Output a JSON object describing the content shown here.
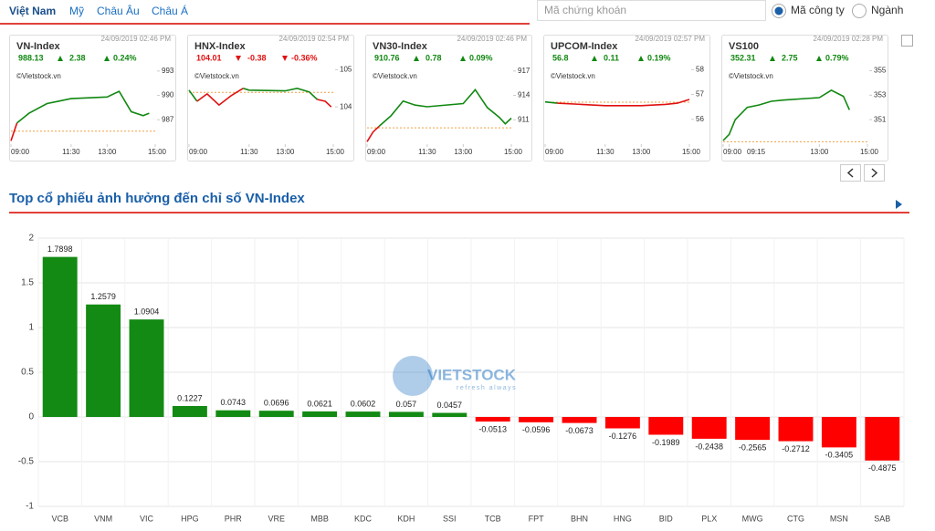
{
  "nav": {
    "tabs": [
      "Việt Nam",
      "Mỹ",
      "Châu Âu",
      "Châu Á"
    ],
    "active_tab": 0,
    "search_placeholder": "Mã chứng khoán",
    "options": [
      "Mã công ty",
      "Ngành"
    ],
    "selected_option": 0
  },
  "chart_data": [
    {
      "type": "bar",
      "title": "Top cổ phiếu ảnh hưởng đến chỉ số VN-Index",
      "categories": [
        "VCB",
        "VNM",
        "VIC",
        "HPG",
        "PHR",
        "VRE",
        "MBB",
        "KDC",
        "KDH",
        "SSI",
        "TCB",
        "FPT",
        "BHN",
        "HNG",
        "BID",
        "PLX",
        "MWG",
        "CTG",
        "MSN",
        "SAB"
      ],
      "values": [
        1.7898,
        1.2579,
        1.0904,
        0.1227,
        0.0743,
        0.0696,
        0.0621,
        0.0602,
        0.057,
        0.0457,
        -0.0513,
        -0.0596,
        -0.0673,
        -0.1276,
        -0.1989,
        -0.2438,
        -0.2565,
        -0.2712,
        -0.3405,
        -0.4875
      ],
      "ylim": [
        -1,
        2
      ],
      "yticks": [
        -1,
        -0.5,
        0,
        0.5,
        1,
        1.5,
        2
      ],
      "grid": true,
      "positive_color": "#138a13",
      "negative_color": "#ff0000",
      "watermark": {
        "text": "VIETSTOCK",
        "tagline": "refresh always"
      }
    },
    {
      "type": "line",
      "title": "VN-Index",
      "datetime": "24/09/2019 02:46 PM",
      "price": "988.13",
      "change": "2.38",
      "percent": "0.24%",
      "direction": "up",
      "source": "©Vietstock.vn",
      "x": [
        "09:00",
        "09:15",
        "09:45",
        "10:30",
        "11:00",
        "11:30",
        "13:00",
        "13:30",
        "14:00",
        "14:30",
        "14:45"
      ],
      "values": [
        984.4,
        986.6,
        987.8,
        989.0,
        989.3,
        989.6,
        989.8,
        990.5,
        988.0,
        987.5,
        987.8
      ],
      "reference": 985.6,
      "ylim": [
        984,
        995
      ],
      "yticks": [
        987,
        990,
        993
      ],
      "xlim": [
        "09:00",
        "15:00"
      ],
      "xticks": [
        "09:00",
        "11:30",
        "13:00",
        "15:00"
      ],
      "up_color": "#118811",
      "down_color": "#e01010",
      "reference_color": "#f0a040"
    },
    {
      "type": "line",
      "title": "HNX-Index",
      "datetime": "24/09/2019 02:54 PM",
      "price": "104.01",
      "change": "-0.38",
      "percent": "-0.36%",
      "direction": "down",
      "source": "©Vietstock.vn",
      "x": [
        "09:00",
        "09:20",
        "09:45",
        "10:15",
        "10:45",
        "11:15",
        "11:30",
        "13:00",
        "13:30",
        "14:00",
        "14:20",
        "14:40",
        "14:55"
      ],
      "values": [
        104.45,
        104.15,
        104.35,
        104.05,
        104.3,
        104.5,
        104.45,
        104.43,
        104.5,
        104.4,
        104.2,
        104.15,
        104.0
      ],
      "reference": 104.39,
      "ylim": [
        103,
        105.4
      ],
      "yticks": [
        104,
        105
      ],
      "xlim": [
        "09:00",
        "15:00"
      ],
      "xticks": [
        "09:00",
        "11:30",
        "13:00",
        "15:00"
      ],
      "up_color": "#118811",
      "down_color": "#e01010",
      "reference_color": "#f0a040"
    },
    {
      "type": "line",
      "title": "VN30-Index",
      "datetime": "24/09/2019 02:46 PM",
      "price": "910.76",
      "change": "0.78",
      "percent": "0.09%",
      "direction": "up",
      "source": "©Vietstock.vn",
      "x": [
        "09:00",
        "09:15",
        "09:30",
        "10:00",
        "10:30",
        "11:00",
        "11:30",
        "13:00",
        "13:30",
        "14:00",
        "14:30",
        "14:45",
        "15:00"
      ],
      "values": [
        908.3,
        909.5,
        910.2,
        911.5,
        913.3,
        912.8,
        912.6,
        913.0,
        914.7,
        912.5,
        911.3,
        910.5,
        911.2
      ],
      "reference": 910.0,
      "ylim": [
        908,
        919
      ],
      "yticks": [
        911,
        914,
        917
      ],
      "xlim": [
        "09:00",
        "15:00"
      ],
      "xticks": [
        "09:00",
        "11:30",
        "13:00",
        "15:00"
      ],
      "up_color": "#118811",
      "down_color": "#e01010",
      "reference_color": "#f0a040"
    },
    {
      "type": "line",
      "title": "UPCOM-Index",
      "datetime": "24/09/2019 02:57 PM",
      "price": "56.8",
      "change": "0.11",
      "percent": "0.19%",
      "direction": "up",
      "source": "©Vietstock.vn",
      "x": [
        "09:00",
        "09:30",
        "10:30",
        "11:30",
        "13:00",
        "14:00",
        "14:30",
        "15:00"
      ],
      "values": [
        56.7,
        56.65,
        56.6,
        56.55,
        56.55,
        56.6,
        56.65,
        56.8
      ],
      "reference": 56.69,
      "ylim": [
        55,
        58.6
      ],
      "yticks": [
        56,
        57,
        58
      ],
      "xlim": [
        "09:00",
        "15:00"
      ],
      "xticks": [
        "09:00",
        "11:30",
        "13:00",
        "15:00"
      ],
      "up_color": "#118811",
      "down_color": "#e01010",
      "reference_color": "#f0a040"
    },
    {
      "type": "line",
      "title": "VS100",
      "datetime": "24/09/2019 02:28 PM",
      "price": "352.31",
      "change": "2.75",
      "percent": "0.79%",
      "direction": "up",
      "source": "©Vietstock.vn",
      "x": [
        "09:00",
        "09:15",
        "09:30",
        "10:00",
        "10:30",
        "11:00",
        "11:30",
        "13:00",
        "13:30",
        "14:00",
        "14:15"
      ],
      "values": [
        349.3,
        349.8,
        351.0,
        352.0,
        352.2,
        352.5,
        352.6,
        352.8,
        353.4,
        352.9,
        351.8
      ],
      "reference": 349.2,
      "ylim": [
        349,
        356.3
      ],
      "yticks": [
        351,
        353,
        355
      ],
      "xlim": [
        "09:00",
        "15:00"
      ],
      "xticks": [
        "09:00",
        "09:15",
        "13:00",
        "15:00"
      ],
      "up_color": "#118811",
      "down_color": "#e01010",
      "reference_color": "#f0a040"
    }
  ]
}
